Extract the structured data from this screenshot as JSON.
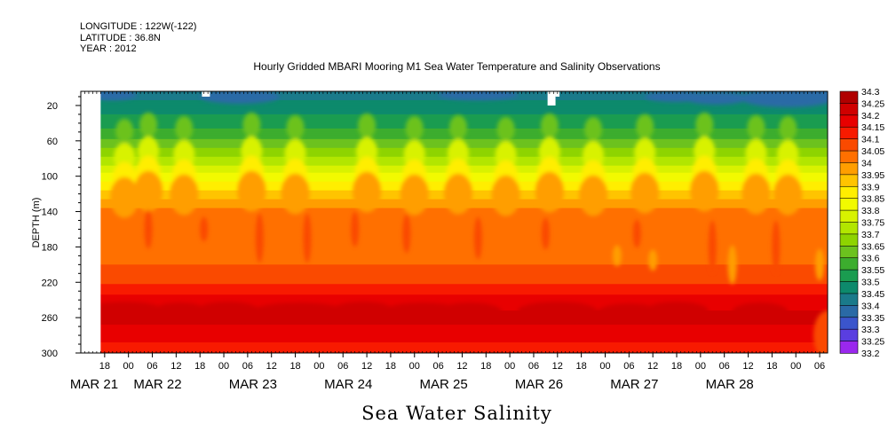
{
  "header": {
    "longitude": "LONGITUDE : 122W(-122)",
    "latitude": "LATITUDE : 36.8N",
    "year": "YEAR : 2012"
  },
  "chart_data": {
    "type": "heatmap",
    "title": "Hourly Gridded MBARI Mooring M1 Sea Water Temperature and Salinity Observations",
    "footer_title": "Sea Water Salinity",
    "ylabel": "DEPTH (m)",
    "ylim": [
      300,
      4
    ],
    "y_ticks": [
      20,
      60,
      100,
      140,
      180,
      220,
      260,
      300
    ],
    "x_range_hours": [
      0,
      188
    ],
    "x_hour_ticks": [
      "18",
      "00",
      "06",
      "12",
      "18",
      "00",
      "06",
      "12",
      "18",
      "00",
      "06",
      "12",
      "18",
      "00",
      "06",
      "12",
      "18",
      "00",
      "06",
      "12",
      "18",
      "00",
      "06",
      "12",
      "18",
      "00",
      "06",
      "12",
      "18",
      "00",
      "06",
      "12"
    ],
    "x_day_labels": [
      "MAR 21",
      "MAR 22",
      "MAR 23",
      "MAR 24",
      "MAR 25",
      "MAR 26",
      "MAR 27",
      "MAR 28"
    ],
    "colorbar": {
      "levels": [
        34.3,
        34.25,
        34.2,
        34.15,
        34.1,
        34.05,
        34,
        33.95,
        33.9,
        33.85,
        33.8,
        33.75,
        33.7,
        33.65,
        33.6,
        33.55,
        33.5,
        33.45,
        33.4,
        33.35,
        33.3,
        33.25,
        33.2
      ],
      "colors": [
        "#b00000",
        "#d00000",
        "#e80000",
        "#f81a00",
        "#fa4a00",
        "#ff7000",
        "#ff9e00",
        "#ffc400",
        "#ffee00",
        "#f2fa00",
        "#d8f200",
        "#b2e600",
        "#8ed400",
        "#6cc21e",
        "#3cad2e",
        "#1a9c50",
        "#0d8a6c",
        "#1a7a8a",
        "#2a6aa6",
        "#3b55cc",
        "#5a3ee0",
        "#9a28ee",
        "#d400ff"
      ]
    },
    "depth_profile": [
      {
        "depth": 4,
        "salinity": 33.47
      },
      {
        "depth": 20,
        "salinity": 33.52
      },
      {
        "depth": 40,
        "salinity": 33.58
      },
      {
        "depth": 60,
        "salinity": 33.66
      },
      {
        "depth": 80,
        "salinity": 33.76
      },
      {
        "depth": 100,
        "salinity": 33.87
      },
      {
        "depth": 120,
        "salinity": 33.97
      },
      {
        "depth": 140,
        "salinity": 34.07
      },
      {
        "depth": 160,
        "salinity": 34.09
      },
      {
        "depth": 200,
        "salinity": 34.1
      },
      {
        "depth": 220,
        "salinity": 34.14
      },
      {
        "depth": 240,
        "salinity": 34.22
      },
      {
        "depth": 260,
        "salinity": 34.27
      },
      {
        "depth": 280,
        "salinity": 34.22
      },
      {
        "depth": 300,
        "salinity": 34.17
      }
    ],
    "missing_data": [
      {
        "hour_start": 0,
        "hour_end": 5,
        "depth_top": 4,
        "depth_bottom": 300
      },
      {
        "hour_start": 30.5,
        "hour_end": 32.5,
        "depth_top": 4,
        "depth_bottom": 10
      },
      {
        "hour_start": 117.5,
        "hour_end": 119.5,
        "depth_top": 4,
        "depth_bottom": 20
      },
      {
        "hour_start": 119.5,
        "hour_end": 120.5,
        "depth_top": 4,
        "depth_bottom": 10
      }
    ]
  }
}
